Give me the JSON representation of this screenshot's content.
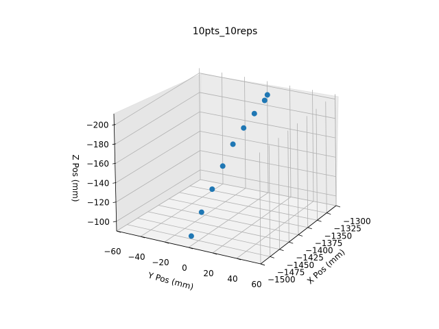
{
  "chart_data": {
    "type": "scatter",
    "title": "10pts_10reps",
    "xlabel": "X Pos (mm)",
    "ylabel": "Y Pos (mm)",
    "zlabel": "Z Pos (mm)",
    "xlim": [
      -1500,
      -1290
    ],
    "ylim": [
      -60,
      60
    ],
    "zlim": [
      -90,
      -205
    ],
    "x_ticks": [
      "-1500",
      "-1475",
      "-1450",
      "-1425",
      "-1400",
      "-1375",
      "-1350",
      "-1325",
      "-1300"
    ],
    "y_ticks": [
      "-60",
      "-40",
      "-20",
      "0",
      "20",
      "40",
      "60"
    ],
    "z_ticks": [
      "-100",
      "-120",
      "-140",
      "-160",
      "-180",
      "-200"
    ],
    "grid": true,
    "points": [
      {
        "x": -1493,
        "y": 0,
        "z": -100
      },
      {
        "x": -1467,
        "y": 0,
        "z": -118
      },
      {
        "x": -1440,
        "y": 0,
        "z": -135
      },
      {
        "x": -1413,
        "y": 0,
        "z": -152
      },
      {
        "x": -1387,
        "y": 0,
        "z": -168
      },
      {
        "x": -1360,
        "y": 0,
        "z": -178
      },
      {
        "x": -1333,
        "y": 0,
        "z": -186
      },
      {
        "x": -1307,
        "y": 0,
        "z": -193
      },
      {
        "x": -1300,
        "y": 0,
        "z": -197
      }
    ],
    "color": "#1f77b4"
  }
}
